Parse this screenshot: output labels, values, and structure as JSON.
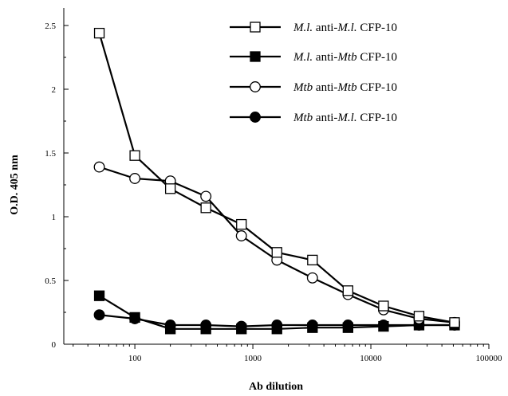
{
  "chart_data": {
    "type": "line",
    "xlabel": "Ab dilution",
    "ylabel": "O.D. 405 nm",
    "xscale": "log",
    "xlim": [
      25,
      100000
    ],
    "ylim": [
      0,
      2.5
    ],
    "x_ticks": [
      100,
      1000,
      10000,
      100000
    ],
    "x_tick_labels": [
      "100",
      "1000",
      "10000",
      "100000"
    ],
    "y_ticks": [
      0,
      0.5,
      1,
      1.5,
      2,
      2.5
    ],
    "y_tick_labels": [
      "0",
      "0.5",
      "1",
      "1.5",
      "2",
      "2.5"
    ],
    "grid": false,
    "legend_position": "top-right",
    "x": [
      50,
      100,
      200,
      400,
      800,
      1600,
      3200,
      6400,
      12800,
      25600,
      51200
    ],
    "series": [
      {
        "name_parts": [
          {
            "t": "M.l.",
            "i": true
          },
          {
            "t": " anti-",
            "i": false
          },
          {
            "t": "M.l.",
            "i": true
          },
          {
            "t": " CFP-10",
            "i": false
          }
        ],
        "marker": "open-square",
        "values": [
          2.44,
          1.48,
          1.22,
          1.07,
          0.94,
          0.72,
          0.66,
          0.42,
          0.3,
          0.22,
          0.17
        ]
      },
      {
        "name_parts": [
          {
            "t": "M.l.",
            "i": true
          },
          {
            "t": " anti-",
            "i": false
          },
          {
            "t": "Mtb",
            "i": true
          },
          {
            "t": " CFP-10",
            "i": false
          }
        ],
        "marker": "filled-square",
        "values": [
          0.38,
          0.21,
          0.12,
          0.12,
          0.12,
          0.12,
          0.13,
          0.13,
          0.14,
          0.15,
          0.15
        ]
      },
      {
        "name_parts": [
          {
            "t": "Mtb",
            "i": true
          },
          {
            "t": " anti-",
            "i": false
          },
          {
            "t": "Mtb",
            "i": true
          },
          {
            "t": " CFP-10",
            "i": false
          }
        ],
        "marker": "open-circle",
        "values": [
          1.39,
          1.3,
          1.28,
          1.16,
          0.85,
          0.66,
          0.52,
          0.39,
          0.27,
          0.2,
          0.17
        ]
      },
      {
        "name_parts": [
          {
            "t": "Mtb",
            "i": true
          },
          {
            "t": " anti-",
            "i": false
          },
          {
            "t": "M.l.",
            "i": true
          },
          {
            "t": " CFP-10",
            "i": false
          }
        ],
        "marker": "filled-circle",
        "values": [
          0.23,
          0.2,
          0.15,
          0.15,
          0.14,
          0.15,
          0.15,
          0.15,
          0.15,
          0.15,
          0.15
        ]
      }
    ]
  }
}
